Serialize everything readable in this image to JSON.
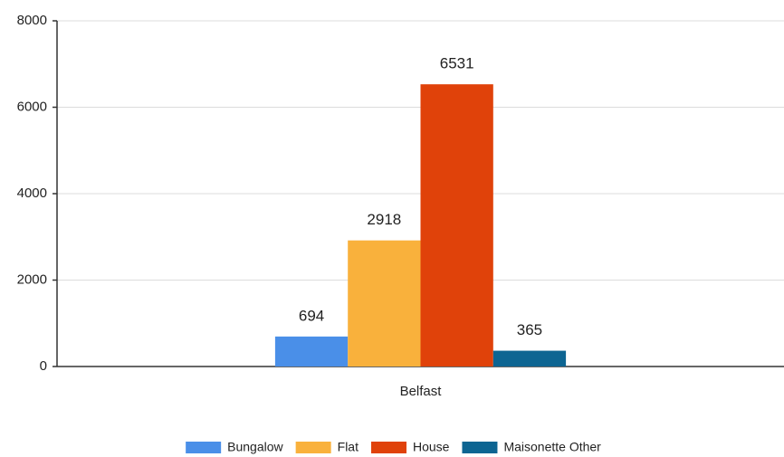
{
  "chart_data": {
    "type": "bar",
    "categories": [
      "Belfast"
    ],
    "series": [
      {
        "name": "Bungalow",
        "color": "#4a8fe8",
        "values": [
          694
        ]
      },
      {
        "name": "Flat",
        "color": "#f9b13c",
        "values": [
          2918
        ]
      },
      {
        "name": "House",
        "color": "#e0420a",
        "values": [
          6531
        ]
      },
      {
        "name": "Maisonette Other",
        "color": "#0d6592",
        "values": [
          365
        ]
      }
    ],
    "ylim": [
      0,
      8000
    ],
    "yticks": [
      0,
      2000,
      4000,
      6000,
      8000
    ],
    "grid": true,
    "legend": "bottom"
  }
}
